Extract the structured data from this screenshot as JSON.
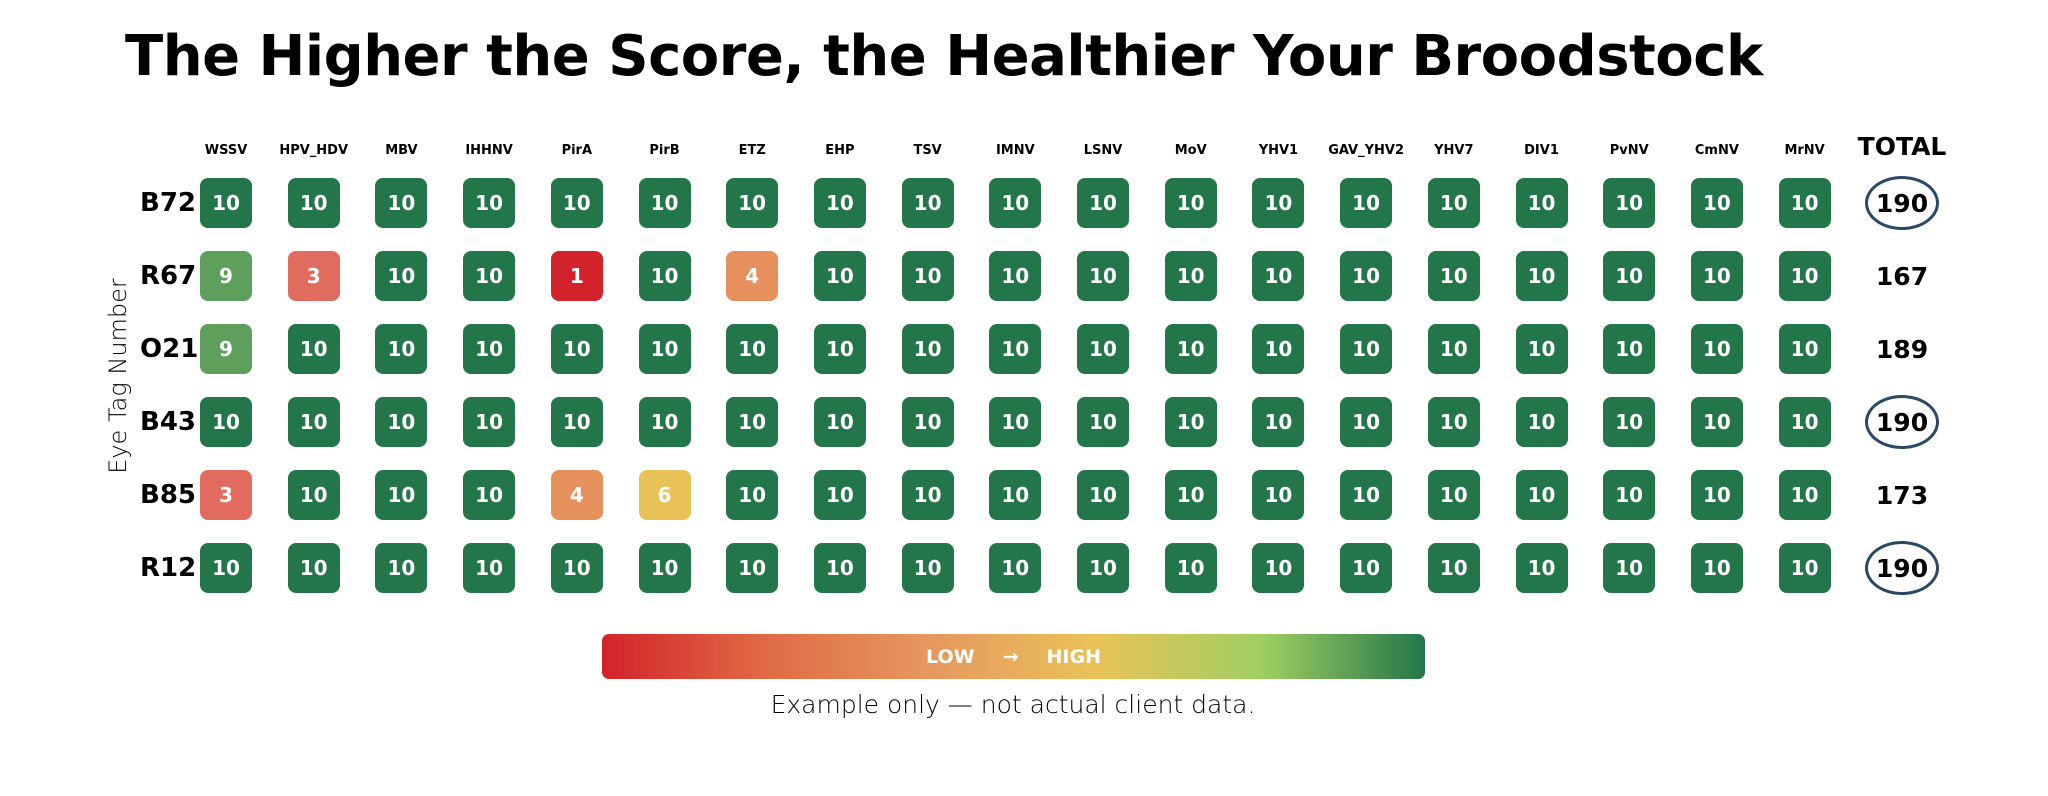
{
  "title": "The Higher the Score, the Healthier Your Broodstock",
  "chart_data": {
    "type": "heatmap",
    "title": "The Higher the Score, the Healthier Your Broodstock",
    "ylabel": "Eye Tag Number",
    "columns": [
      "WSSV",
      "HPV_HDV",
      "MBV",
      "IHHNV",
      "PirA",
      "PirB",
      "ETZ",
      "EHP",
      "TSV",
      "IMNV",
      "LSNV",
      "MoV",
      "YHV1",
      "GAV_YHV2",
      "YHV7",
      "DIV1",
      "PvNV",
      "CmNV",
      "MrNV"
    ],
    "total_label": "TOTAL",
    "rows": [
      {
        "label": "B72",
        "values": [
          10,
          10,
          10,
          10,
          10,
          10,
          10,
          10,
          10,
          10,
          10,
          10,
          10,
          10,
          10,
          10,
          10,
          10,
          10
        ],
        "total": "190",
        "circled": true
      },
      {
        "label": "R67",
        "values": [
          9,
          3,
          10,
          10,
          1,
          10,
          4,
          10,
          10,
          10,
          10,
          10,
          10,
          10,
          10,
          10,
          10,
          10,
          10
        ],
        "total": "167",
        "circled": false
      },
      {
        "label": "O21",
        "values": [
          9,
          10,
          10,
          10,
          10,
          10,
          10,
          10,
          10,
          10,
          10,
          10,
          10,
          10,
          10,
          10,
          10,
          10,
          10
        ],
        "total": "189",
        "circled": false
      },
      {
        "label": "B43",
        "values": [
          10,
          10,
          10,
          10,
          10,
          10,
          10,
          10,
          10,
          10,
          10,
          10,
          10,
          10,
          10,
          10,
          10,
          10,
          10
        ],
        "total": "190",
        "circled": true
      },
      {
        "label": "B85",
        "values": [
          3,
          10,
          10,
          10,
          4,
          6,
          10,
          10,
          10,
          10,
          10,
          10,
          10,
          10,
          10,
          10,
          10,
          10,
          10
        ],
        "total": "173",
        "circled": false
      },
      {
        "label": "R12",
        "values": [
          10,
          10,
          10,
          10,
          10,
          10,
          10,
          10,
          10,
          10,
          10,
          10,
          10,
          10,
          10,
          10,
          10,
          10,
          10
        ],
        "total": "190",
        "circled": true
      }
    ],
    "value_colors": {
      "1": "#d2232a",
      "3": "#e06b5e",
      "4": "#e6905d",
      "6": "#e9c257",
      "9": "#5e9f5b",
      "10": "#23764a"
    },
    "legend": {
      "low": "LOW",
      "arrow": "→",
      "high": "HIGH",
      "gradient": [
        "#d2232a",
        "#e06b45",
        "#e6985f",
        "#e9c257",
        "#a1cf62",
        "#23764a"
      ]
    }
  },
  "caption": "Example only — not actual client data."
}
